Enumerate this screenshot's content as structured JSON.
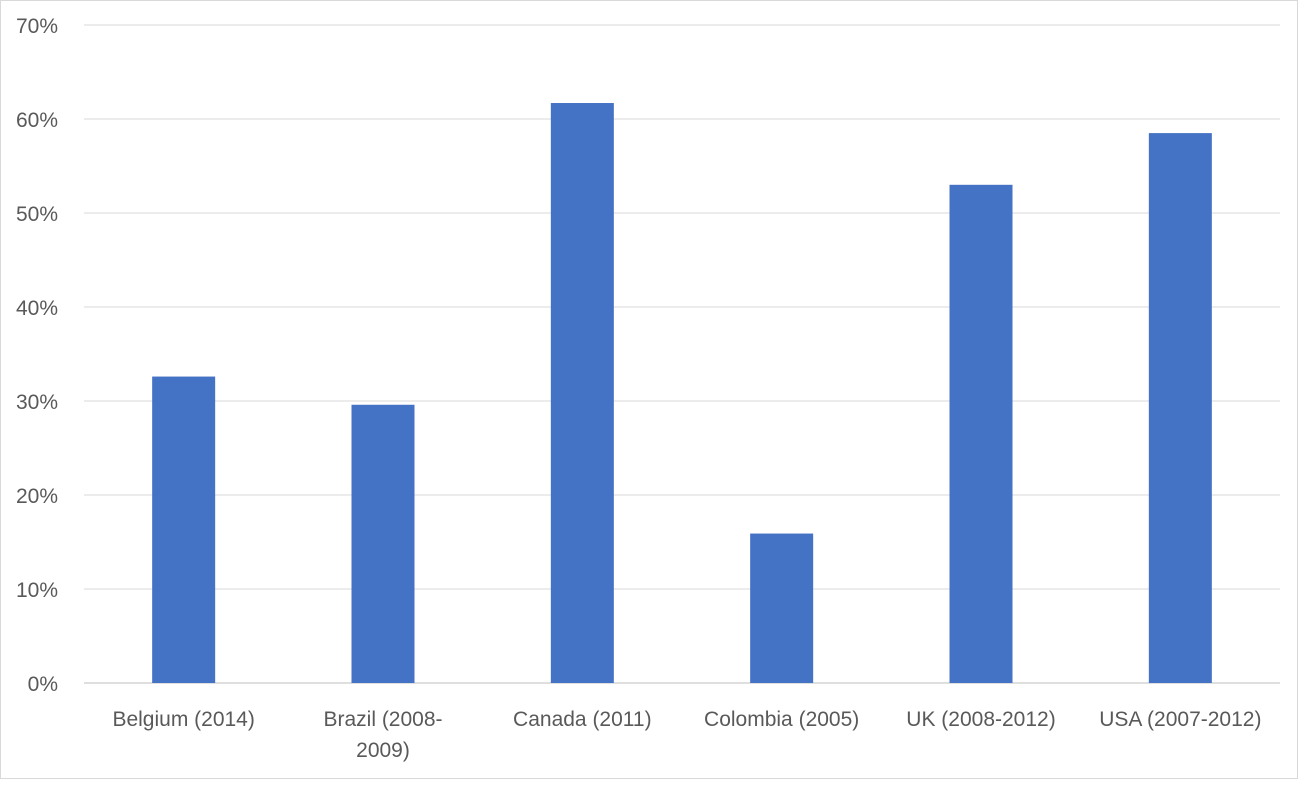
{
  "chart_data": {
    "type": "bar",
    "title": "",
    "xlabel": "",
    "ylabel": "",
    "categories": [
      [
        "Belgium (2014)"
      ],
      [
        "Brazil (2008-",
        "2009)"
      ],
      [
        "Canada (2011)"
      ],
      [
        "Colombia (2005)"
      ],
      [
        "UK (2008-2012)"
      ],
      [
        "USA (2007-2012)"
      ]
    ],
    "values": [
      0.326,
      0.296,
      0.617,
      0.159,
      0.53,
      0.585
    ],
    "ylim": [
      0,
      0.7
    ],
    "yticks": [
      0,
      0.1,
      0.2,
      0.3,
      0.4,
      0.5,
      0.6,
      0.7
    ],
    "ytick_labels": [
      "0%",
      "10%",
      "20%",
      "30%",
      "40%",
      "50%",
      "60%",
      "70%"
    ],
    "grid": true,
    "legend": "none",
    "bar_color": "#4472C4",
    "grid_color": "#d9d9d9",
    "axis_color": "#bfbfbf",
    "text_color": "#595959"
  }
}
